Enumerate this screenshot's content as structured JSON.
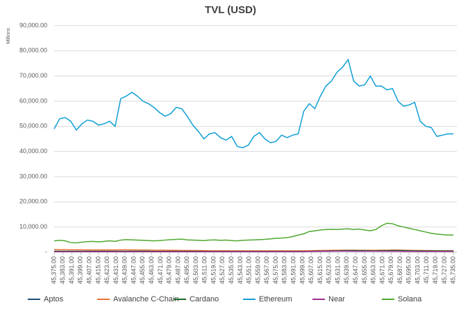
{
  "chart_data": {
    "type": "line",
    "title": "TVL (USD)",
    "y_axis_label": "Millions",
    "x": [
      45375,
      45380,
      45385,
      45390,
      45395,
      45400,
      45405,
      45410,
      45415,
      45420,
      45425,
      45430,
      45435,
      45440,
      45445,
      45450,
      45455,
      45460,
      45465,
      45470,
      45475,
      45480,
      45485,
      45490,
      45495,
      45500,
      45505,
      45510,
      45515,
      45520,
      45525,
      45530,
      45535,
      45540,
      45545,
      45550,
      45555,
      45560,
      45565,
      45570,
      45575,
      45580,
      45585,
      45590,
      45595,
      45600,
      45605,
      45610,
      45615,
      45620,
      45625,
      45630,
      45635,
      45640,
      45645,
      45650,
      45655,
      45660,
      45665,
      45670,
      45675,
      45680,
      45685,
      45690,
      45695,
      45700,
      45705,
      45710,
      45715,
      45720,
      45725,
      45730,
      45735
    ],
    "series": [
      {
        "name": "Aptos",
        "color": "#1f4e79",
        "values": [
          300,
          300,
          300,
          300,
          300,
          300,
          300,
          300,
          300,
          300,
          300,
          300,
          300,
          300,
          300,
          300,
          300,
          300,
          300,
          300,
          300,
          300,
          300,
          300,
          300,
          300,
          300,
          300,
          300,
          300,
          300,
          300,
          300,
          300,
          300,
          300,
          300,
          300,
          300,
          300,
          300,
          300,
          300,
          300,
          300,
          300,
          400,
          400,
          400,
          400,
          400,
          500,
          500,
          500,
          500,
          500,
          500,
          500,
          500,
          500,
          500,
          500,
          500,
          500,
          500,
          500,
          500,
          500,
          500,
          500,
          500,
          500,
          500
        ]
      },
      {
        "name": "Avalanche C-Chain",
        "color": "#e97132",
        "values": [
          1000,
          1000,
          1000,
          950,
          950,
          950,
          900,
          900,
          900,
          900,
          900,
          900,
          950,
          950,
          900,
          900,
          850,
          850,
          800,
          800,
          800,
          750,
          750,
          700,
          700,
          700,
          650,
          650,
          600,
          600,
          600,
          600,
          550,
          550,
          550,
          550,
          550,
          550,
          550,
          550,
          550,
          550,
          550,
          550,
          550,
          550,
          600,
          650,
          700,
          700,
          750,
          750,
          800,
          800,
          800,
          750,
          750,
          750,
          750,
          800,
          800,
          850,
          850,
          800,
          750,
          700,
          700,
          650,
          650,
          600,
          600,
          600,
          600
        ]
      },
      {
        "name": "Cardano",
        "color": "#196b24",
        "values": [
          400,
          400,
          400,
          400,
          400,
          400,
          400,
          400,
          400,
          400,
          400,
          400,
          400,
          400,
          400,
          400,
          400,
          400,
          350,
          350,
          350,
          350,
          350,
          350,
          350,
          350,
          350,
          300,
          300,
          300,
          300,
          300,
          300,
          300,
          300,
          300,
          300,
          300,
          300,
          300,
          300,
          300,
          300,
          300,
          300,
          300,
          350,
          400,
          450,
          500,
          550,
          600,
          650,
          700,
          700,
          650,
          650,
          600,
          600,
          650,
          650,
          700,
          700,
          650,
          600,
          550,
          550,
          500,
          500,
          500,
          500,
          500,
          500
        ]
      },
      {
        "name": "Ethereum",
        "color": "#0f9ed5",
        "values": [
          49000,
          53000,
          53500,
          52000,
          48500,
          51000,
          52500,
          52000,
          50500,
          51000,
          52000,
          50000,
          61000,
          62000,
          63500,
          62000,
          60000,
          59000,
          57500,
          55500,
          54000,
          55000,
          57500,
          57000,
          54000,
          50500,
          48000,
          45000,
          47000,
          47500,
          45500,
          44500,
          46000,
          42000,
          41500,
          42500,
          46000,
          47500,
          45000,
          43500,
          44000,
          46500,
          45500,
          46500,
          47000,
          56000,
          59000,
          57000,
          62000,
          66000,
          68000,
          71500,
          73500,
          76500,
          68000,
          66000,
          66500,
          70000,
          66000,
          66000,
          64500,
          65000,
          60000,
          58000,
          58500,
          59500,
          52000,
          50000,
          49500,
          46000,
          46500,
          47000,
          47000
        ]
      },
      {
        "name": "Near",
        "color": "#a02b93",
        "values": [
          200,
          200,
          200,
          200,
          200,
          200,
          200,
          200,
          200,
          200,
          200,
          200,
          200,
          200,
          200,
          200,
          200,
          200,
          200,
          200,
          200,
          200,
          200,
          200,
          200,
          200,
          200,
          200,
          200,
          200,
          200,
          200,
          200,
          200,
          200,
          200,
          200,
          200,
          200,
          200,
          200,
          200,
          200,
          200,
          200,
          250,
          300,
          350,
          400,
          450,
          450,
          450,
          450,
          450,
          400,
          400,
          400,
          400,
          400,
          400,
          400,
          400,
          400,
          350,
          350,
          350,
          300,
          300,
          300,
          300,
          300,
          300,
          300
        ]
      },
      {
        "name": "Solana",
        "color": "#4ea72e",
        "values": [
          4500,
          4700,
          4500,
          3800,
          3700,
          4000,
          4200,
          4300,
          4100,
          4300,
          4500,
          4300,
          4800,
          5000,
          4900,
          4800,
          4700,
          4600,
          4500,
          4600,
          4800,
          5000,
          5100,
          5200,
          4900,
          4800,
          4700,
          4600,
          4800,
          4900,
          4700,
          4800,
          4600,
          4500,
          4700,
          4800,
          4900,
          5000,
          5100,
          5300,
          5500,
          5600,
          5800,
          6200,
          6800,
          7300,
          8200,
          8500,
          8800,
          9000,
          9100,
          9000,
          9200,
          9300,
          9000,
          9200,
          8800,
          8500,
          9000,
          10500,
          11500,
          11300,
          10500,
          10000,
          9500,
          9000,
          8500,
          8000,
          7500,
          7200,
          7000,
          6800,
          6800
        ]
      }
    ],
    "xlim": [
      45375,
      45738
    ],
    "xticks": [
      {
        "value": 45375,
        "label": "45,375.00"
      },
      {
        "value": 45383,
        "label": "45,383.00"
      },
      {
        "value": 45391,
        "label": "45,391.00"
      },
      {
        "value": 45399,
        "label": "45,399.00"
      },
      {
        "value": 45407,
        "label": "45,407.00"
      },
      {
        "value": 45415,
        "label": "45,415.00"
      },
      {
        "value": 45423,
        "label": "45,423.00"
      },
      {
        "value": 45431,
        "label": "45,431.00"
      },
      {
        "value": 45439,
        "label": "45,439.00"
      },
      {
        "value": 45447,
        "label": "45,447.00"
      },
      {
        "value": 45455,
        "label": "45,455.00"
      },
      {
        "value": 45463,
        "label": "45,463.00"
      },
      {
        "value": 45471,
        "label": "45,471.00"
      },
      {
        "value": 45479,
        "label": "45,479.00"
      },
      {
        "value": 45487,
        "label": "45,487.00"
      },
      {
        "value": 45495,
        "label": "45,495.00"
      },
      {
        "value": 45503,
        "label": "45,503.00"
      },
      {
        "value": 45511,
        "label": "45,511.00"
      },
      {
        "value": 45519,
        "label": "45,519.00"
      },
      {
        "value": 45527,
        "label": "45,527.00"
      },
      {
        "value": 45535,
        "label": "45,535.00"
      },
      {
        "value": 45543,
        "label": "45,543.00"
      },
      {
        "value": 45551,
        "label": "45,551.00"
      },
      {
        "value": 45559,
        "label": "45,559.00"
      },
      {
        "value": 45567,
        "label": "45,567.00"
      },
      {
        "value": 45575,
        "label": "45,575.00"
      },
      {
        "value": 45583,
        "label": "45,583.00"
      },
      {
        "value": 45591,
        "label": "45,591.00"
      },
      {
        "value": 45599,
        "label": "45,599.00"
      },
      {
        "value": 45607,
        "label": "45,607.00"
      },
      {
        "value": 45615,
        "label": "45,615.00"
      },
      {
        "value": 45623,
        "label": "45,623.00"
      },
      {
        "value": 45631,
        "label": "45,631.00"
      },
      {
        "value": 45639,
        "label": "45,639.00"
      },
      {
        "value": 45647,
        "label": "45,647.00"
      },
      {
        "value": 45655,
        "label": "45,655.00"
      },
      {
        "value": 45663,
        "label": "45,663.00"
      },
      {
        "value": 45671,
        "label": "45,671.00"
      },
      {
        "value": 45679,
        "label": "45,679.00"
      },
      {
        "value": 45687,
        "label": "45,687.00"
      },
      {
        "value": 45695,
        "label": "45,695.00"
      },
      {
        "value": 45703,
        "label": "45,703.00"
      },
      {
        "value": 45711,
        "label": "45,711.00"
      },
      {
        "value": 45719,
        "label": "45,719.00"
      },
      {
        "value": 45727,
        "label": "45,727.00"
      },
      {
        "value": 45735,
        "label": "45,735.00"
      }
    ],
    "ylim": [
      0,
      90000
    ],
    "yticks": [
      {
        "value": 0,
        "label": "-"
      },
      {
        "value": 10000,
        "label": "10,000.00"
      },
      {
        "value": 20000,
        "label": "20,000.00"
      },
      {
        "value": 30000,
        "label": "30,000.00"
      },
      {
        "value": 40000,
        "label": "40,000.00"
      },
      {
        "value": 50000,
        "label": "50,000.00"
      },
      {
        "value": 60000,
        "label": "60,000.00"
      },
      {
        "value": 70000,
        "label": "70,000.00"
      },
      {
        "value": 80000,
        "label": "80,000.00"
      },
      {
        "value": 90000,
        "label": "90,000.00"
      }
    ],
    "grid": true,
    "legend": "bottom"
  }
}
